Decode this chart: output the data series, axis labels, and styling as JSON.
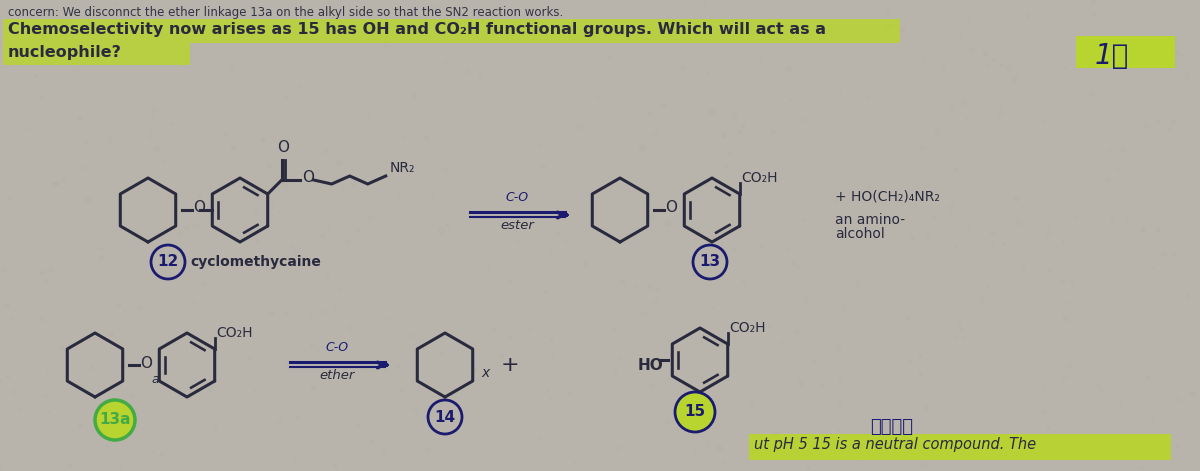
{
  "bg_color": "#b8b4ac",
  "paper_color": "#c8c4bc",
  "highlight_yg": "#b8d820",
  "text_color": "#111122",
  "dark_blue": "#1a1a6e",
  "ink_color": "#2a2a3e",
  "green_circle": "#44aa44",
  "figsize": [
    12.0,
    4.71
  ],
  "dpi": 100,
  "top_line0": "concern: We disconnct the ether linkage 13a on the alkyl side so that the SN2 reaction works.",
  "top_line1": "Chemoselectivity now arises as 15 has OH and CO₂H functional groups. Which will act as a",
  "top_line2": "nucleophile?",
  "bottom_line": "ut pH 5 15 is a neutral compound. The",
  "label_NR2": "NR₂",
  "label_CO2H": "CO₂H",
  "label_HO_CH2_NR2": "+ HO(CH₂)₄NR₂",
  "label_amino_alcohol1": "an amino-",
  "label_amino_alcohol2": "alcohol",
  "label_ester": "ester",
  "label_ether": "ether",
  "label_CO_O": "C-O",
  "label_HO": "HO",
  "label_12": "12",
  "label_cyclo": "cyclomethycaine",
  "label_13": "13",
  "label_13a": "13a",
  "label_14": "14",
  "label_15": "15",
  "label_X": "x",
  "label_plus": "+",
  "label_O": "O",
  "label_a": "a"
}
